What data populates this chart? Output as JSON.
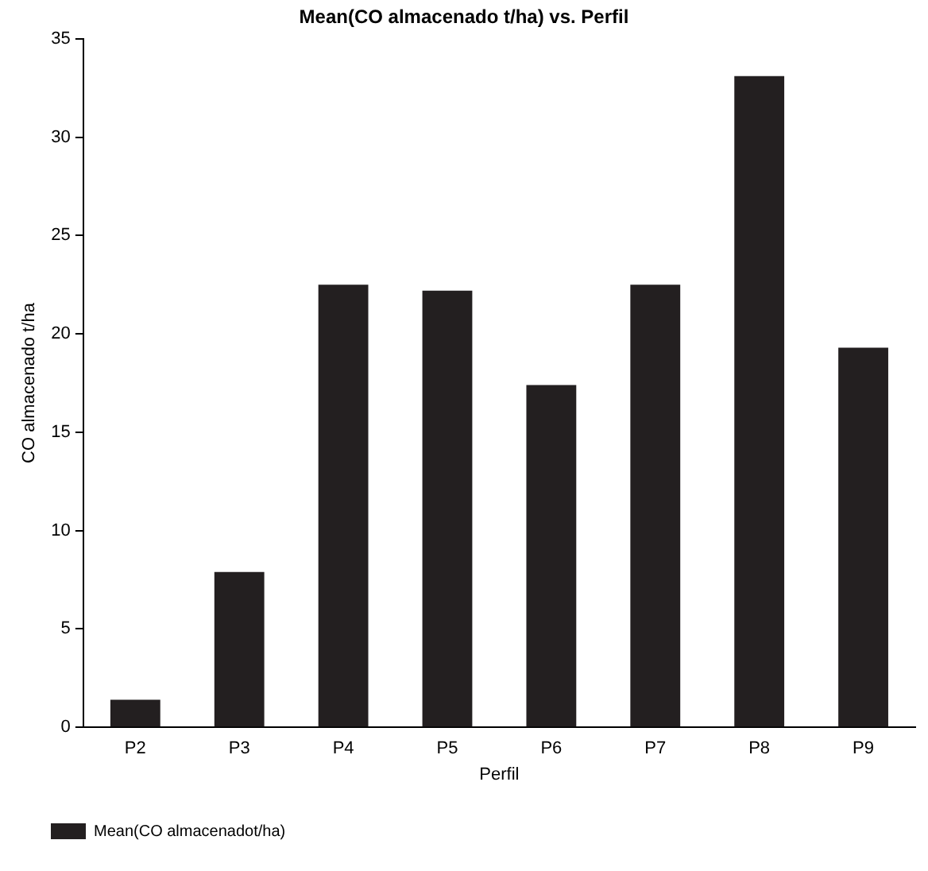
{
  "chart_data": {
    "type": "bar",
    "title": "Mean(CO almacenado t/ha) vs. Perfil",
    "xlabel": "Perfil",
    "ylabel": "CO almacenado t/ha",
    "categories": [
      "P2",
      "P3",
      "P4",
      "P5",
      "P6",
      "P7",
      "P8",
      "P9"
    ],
    "series": [
      {
        "name": "Mean(CO almacenadot/ha)",
        "color": "#231f20",
        "values": [
          1.4,
          7.9,
          22.5,
          22.2,
          17.4,
          22.5,
          33.1,
          19.3
        ]
      }
    ],
    "ylim": [
      0,
      35
    ],
    "yticks": [
      0,
      5,
      10,
      15,
      20,
      25,
      30,
      35
    ],
    "grid": false,
    "legend": "bottom left"
  }
}
